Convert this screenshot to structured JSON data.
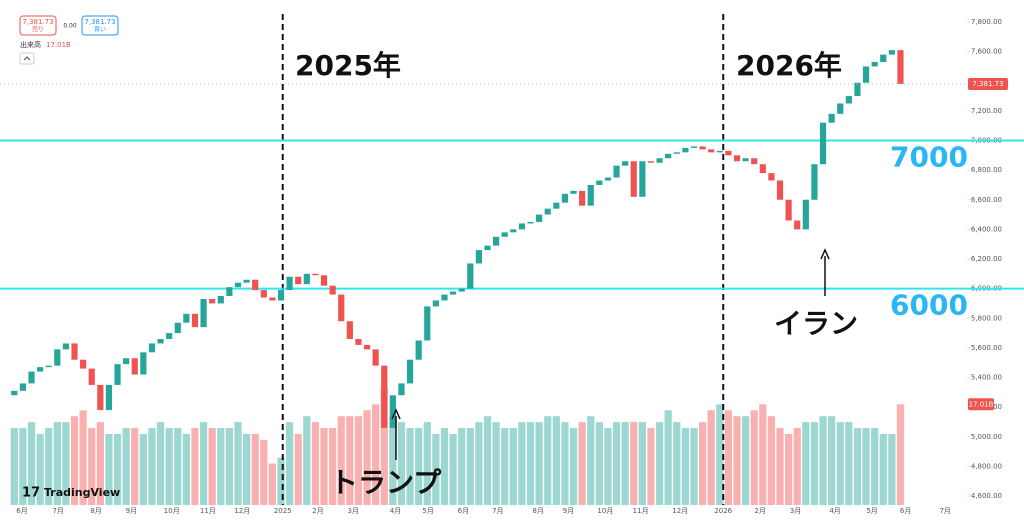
{
  "chart_data": {
    "type": "candlestick",
    "toolbar": {
      "sell_price": "7,381.73",
      "sell": "売り",
      "spread": "0.00",
      "buy_price": "7,381.73",
      "buy": "買い",
      "volume_label": "出来高",
      "volume_value": "17.01B"
    },
    "price_badge": "7,381.73",
    "volume_badge": "17.01B",
    "logo": "TradingView",
    "annotations": {
      "year1": "2025年",
      "year2": "2026年",
      "iran": "イラン",
      "trump": "トランプ"
    },
    "hlines": [
      7000,
      6000
    ],
    "hline_color": "#2ee6f0",
    "up_color": "#26a69a",
    "down_color": "#ef5350",
    "open": [
      5280,
      5310,
      5360,
      5440,
      5470,
      5480,
      5590,
      5630,
      5520,
      5460,
      5350,
      5180,
      5350,
      5490,
      5530,
      5420,
      5570,
      5630,
      5660,
      5700,
      5770,
      5830,
      5740,
      5930,
      5900,
      5950,
      6010,
      6040,
      6060,
      5990,
      5940,
      5920,
      5990,
      6080,
      6030,
      6100,
      6090,
      6020,
      5960,
      5780,
      5660,
      5620,
      5590,
      5480,
      5060,
      5280,
      5360,
      5520,
      5650,
      5880,
      5920,
      5960,
      5980,
      6000,
      6170,
      6260,
      6290,
      6350,
      6380,
      6400,
      6440,
      6450,
      6500,
      6540,
      6580,
      6640,
      6660,
      6560,
      6700,
      6730,
      6750,
      6830,
      6860,
      6620,
      6860,
      6850,
      6880,
      6910,
      6920,
      6950,
      6960,
      6940,
      6920,
      6930,
      6900,
      6860,
      6880,
      6840,
      6780,
      6730,
      6600,
      6460,
      6400,
      6600,
      6840,
      7120,
      7180,
      7250,
      7300,
      7390,
      7500,
      7530,
      7580,
      7610
    ],
    "close": [
      5310,
      5360,
      5440,
      5470,
      5480,
      5590,
      5630,
      5520,
      5460,
      5350,
      5180,
      5350,
      5490,
      5530,
      5420,
      5570,
      5630,
      5660,
      5700,
      5770,
      5830,
      5740,
      5930,
      5900,
      5950,
      6010,
      6040,
      6060,
      5990,
      5940,
      5920,
      5990,
      6080,
      6030,
      6100,
      6090,
      6020,
      5960,
      5780,
      5660,
      5620,
      5590,
      5480,
      5060,
      5280,
      5360,
      5520,
      5650,
      5880,
      5920,
      5960,
      5980,
      6000,
      6170,
      6260,
      6290,
      6350,
      6380,
      6400,
      6440,
      6450,
      6500,
      6540,
      6580,
      6640,
      6660,
      6560,
      6700,
      6730,
      6750,
      6830,
      6860,
      6620,
      6860,
      6850,
      6880,
      6910,
      6920,
      6950,
      6960,
      6940,
      6920,
      6930,
      6900,
      6860,
      6880,
      6840,
      6780,
      6730,
      6600,
      6460,
      6400,
      6600,
      6840,
      7120,
      7180,
      7250,
      7300,
      7390,
      7500,
      7530,
      7580,
      7610,
      7381.73
    ],
    "volume": [
      13,
      13,
      14,
      12,
      13,
      14,
      14,
      15,
      16,
      13,
      14,
      12,
      12,
      13,
      13,
      12,
      13,
      14,
      13,
      13,
      12,
      13,
      14,
      13,
      13,
      13,
      14,
      12,
      12,
      11,
      7,
      8,
      14,
      12,
      15,
      14,
      13,
      13,
      15,
      15,
      15,
      16,
      17,
      20,
      15,
      14,
      13,
      13,
      14,
      12,
      13,
      12,
      13,
      13,
      14,
      15,
      14,
      13,
      13,
      14,
      14,
      14,
      15,
      15,
      14,
      13,
      14,
      15,
      14,
      13,
      14,
      14,
      14,
      14,
      13,
      14,
      16,
      14,
      13,
      13,
      14,
      16,
      17,
      16,
      15,
      15,
      16,
      17,
      15,
      13,
      12,
      13,
      14,
      14,
      15,
      15,
      14,
      14,
      13,
      13,
      13,
      12,
      12,
      17.01
    ],
    "ylim": [
      4600,
      7800
    ],
    "volume_ylim": [
      0,
      25
    ],
    "xlim": [
      -0.5,
      110.5
    ],
    "yticks": [
      {
        "value": 4600,
        "label": "4,600.00"
      },
      {
        "value": 4800,
        "label": "4,800.00"
      },
      {
        "value": 5000,
        "label": "5,000.00"
      },
      {
        "value": 5200,
        "label": "5,200.00"
      },
      {
        "value": 5400,
        "label": "5,400.00"
      },
      {
        "value": 5600,
        "label": "5,600.00"
      },
      {
        "value": 5800,
        "label": "5,800.00"
      },
      {
        "value": 6000,
        "label": "6,000.00"
      },
      {
        "value": 6200,
        "label": "6,200.00"
      },
      {
        "value": 6400,
        "label": "6,400.00"
      },
      {
        "value": 6600,
        "label": "6,600.00"
      },
      {
        "value": 6800,
        "label": "6,800.00"
      },
      {
        "value": 7000,
        "label": "7,000.00"
      },
      {
        "value": 7200,
        "label": "7,200.00"
      },
      {
        "value": 7400,
        "label": "7,400.00"
      },
      {
        "value": 7600,
        "label": "7,600.00"
      },
      {
        "value": 7800,
        "label": "7,800.00"
      }
    ],
    "xticks": [
      {
        "value": 0.9,
        "label": "6月"
      },
      {
        "value": 5.1,
        "label": "7月"
      },
      {
        "value": 9.5,
        "label": "8月"
      },
      {
        "value": 13.6,
        "label": "9月"
      },
      {
        "value": 18.3,
        "label": "10月"
      },
      {
        "value": 22.5,
        "label": "11月"
      },
      {
        "value": 26.5,
        "label": "12月"
      },
      {
        "value": 31.2,
        "label": "2025"
      },
      {
        "value": 35.3,
        "label": "2月"
      },
      {
        "value": 39.4,
        "label": "3月"
      },
      {
        "value": 44.3,
        "label": "4月"
      },
      {
        "value": 48.1,
        "label": "5月"
      },
      {
        "value": 52.2,
        "label": "6月"
      },
      {
        "value": 56.2,
        "label": "7月"
      },
      {
        "value": 60.9,
        "label": "8月"
      },
      {
        "value": 64.4,
        "label": "9月"
      },
      {
        "value": 68.7,
        "label": "10月"
      },
      {
        "value": 72.8,
        "label": "11月"
      },
      {
        "value": 77.4,
        "label": "12月"
      },
      {
        "value": 82.4,
        "label": "2026"
      },
      {
        "value": 86.7,
        "label": "2月"
      },
      {
        "value": 90.8,
        "label": "3月"
      },
      {
        "value": 95.4,
        "label": "4月"
      },
      {
        "value": 99.7,
        "label": "5月"
      },
      {
        "value": 103.6,
        "label": "6月"
      },
      {
        "value": 108.2,
        "label": "7月"
      }
    ],
    "year_marks": [
      7,
      19
    ]
  }
}
